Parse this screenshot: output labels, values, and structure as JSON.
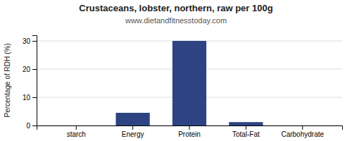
{
  "chart_data": {
    "type": "bar",
    "title": "Crustaceans, lobster, northern, raw per 100g",
    "subtitle": "www.dietandfitnesstoday.com",
    "categories": [
      "starch",
      "Energy",
      "Protein",
      "Total-Fat",
      "Carbohydrate"
    ],
    "values": [
      0,
      4.5,
      30,
      1.2,
      0
    ],
    "color": "#2e4482",
    "ylabel": "Percentage of RDH (%)",
    "ylim": [
      0,
      32
    ],
    "yticks": [
      0,
      10,
      20,
      30
    ],
    "grid": true
  }
}
